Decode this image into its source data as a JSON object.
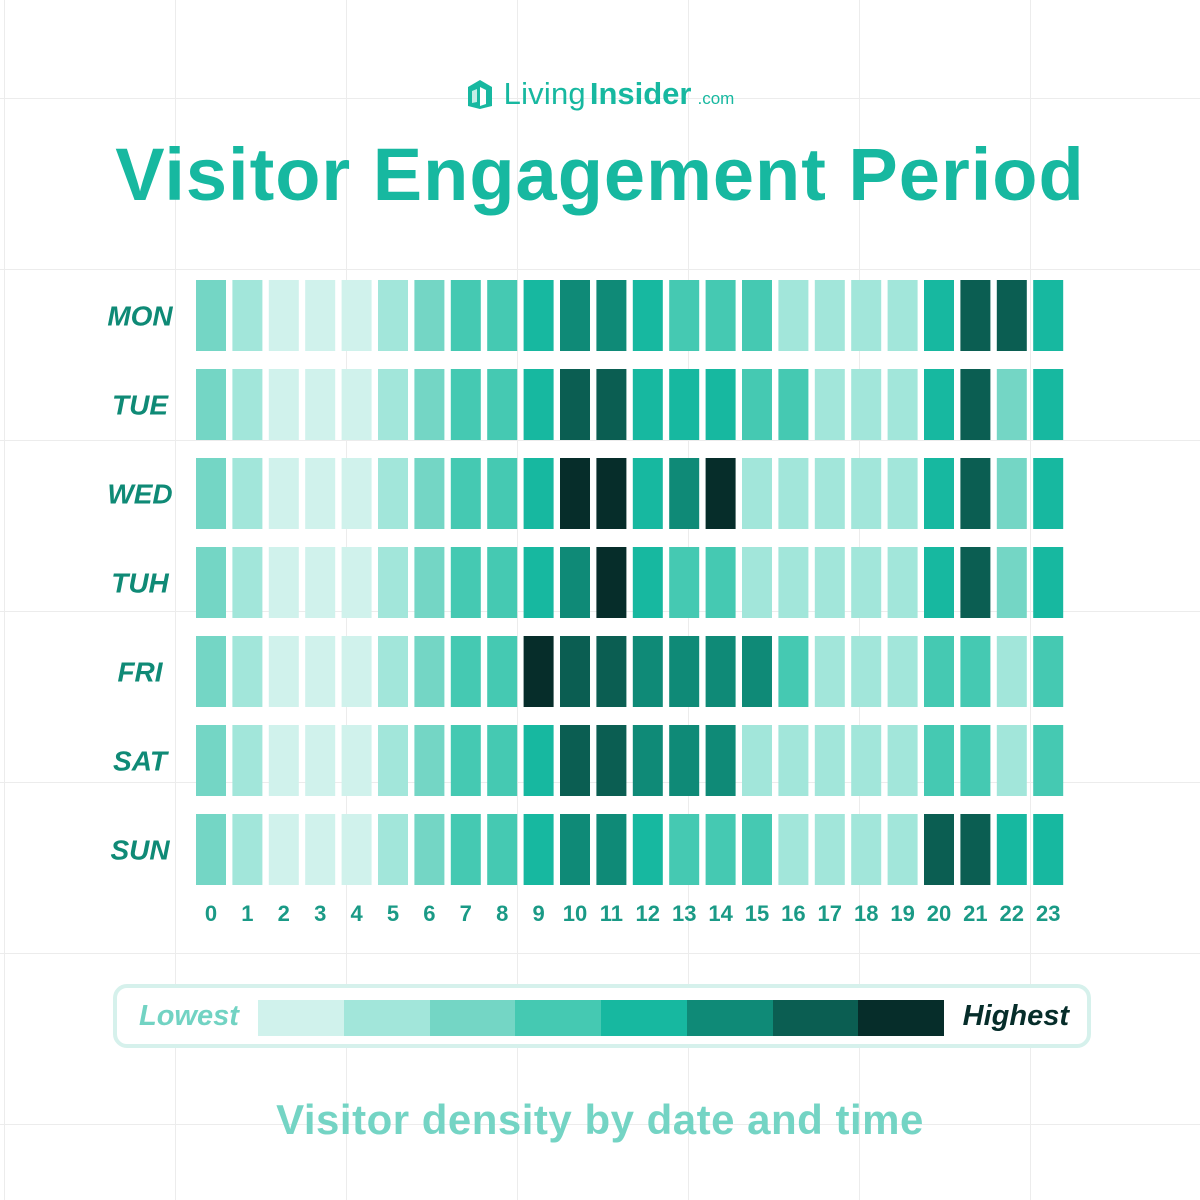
{
  "logo": {
    "word1": "Living",
    "word2": "Insider",
    "suffix": ".com",
    "icon": "house-icon"
  },
  "title": "Visitor Engagement Period",
  "subtitle": "Visitor density by date and time",
  "legend": {
    "low_label": "Lowest",
    "high_label": "Highest",
    "colors": [
      "#d0f2ec",
      "#a2e6da",
      "#74d6c5",
      "#45c9b2",
      "#17b8a0",
      "#0f8a77",
      "#0b5e52",
      "#062d2a"
    ]
  },
  "chart_data": {
    "type": "heatmap",
    "title": "Visitor Engagement Period",
    "rows": [
      "MON",
      "TUE",
      "WED",
      "TUH",
      "FRI",
      "SAT",
      "SUN"
    ],
    "columns": [
      "0",
      "1",
      "2",
      "3",
      "4",
      "5",
      "6",
      "7",
      "8",
      "9",
      "10",
      "11",
      "12",
      "13",
      "14",
      "15",
      "16",
      "17",
      "18",
      "19",
      "20",
      "21",
      "22",
      "23"
    ],
    "scale": "1 = Lowest, 8 = Highest",
    "values": [
      [
        3,
        2,
        1,
        1,
        1,
        2,
        3,
        4,
        4,
        5,
        6,
        6,
        5,
        4,
        4,
        4,
        2,
        2,
        2,
        2,
        5,
        7,
        7,
        5
      ],
      [
        3,
        2,
        1,
        1,
        1,
        2,
        3,
        4,
        4,
        5,
        7,
        7,
        5,
        5,
        5,
        4,
        4,
        2,
        2,
        2,
        5,
        7,
        3,
        5
      ],
      [
        3,
        2,
        1,
        1,
        1,
        2,
        3,
        4,
        4,
        5,
        8,
        8,
        5,
        6,
        8,
        2,
        2,
        2,
        2,
        2,
        5,
        7,
        3,
        5
      ],
      [
        3,
        2,
        1,
        1,
        1,
        2,
        3,
        4,
        4,
        5,
        6,
        8,
        5,
        4,
        4,
        2,
        2,
        2,
        2,
        2,
        5,
        7,
        3,
        5
      ],
      [
        3,
        2,
        1,
        1,
        1,
        2,
        3,
        4,
        4,
        8,
        7,
        7,
        6,
        6,
        6,
        6,
        4,
        2,
        2,
        2,
        4,
        4,
        2,
        4
      ],
      [
        3,
        2,
        1,
        1,
        1,
        2,
        3,
        4,
        4,
        5,
        7,
        7,
        6,
        6,
        6,
        2,
        2,
        2,
        2,
        2,
        4,
        4,
        2,
        4
      ],
      [
        3,
        2,
        1,
        1,
        1,
        2,
        3,
        4,
        4,
        5,
        6,
        6,
        5,
        4,
        4,
        4,
        2,
        2,
        2,
        2,
        7,
        7,
        5,
        5
      ]
    ]
  }
}
